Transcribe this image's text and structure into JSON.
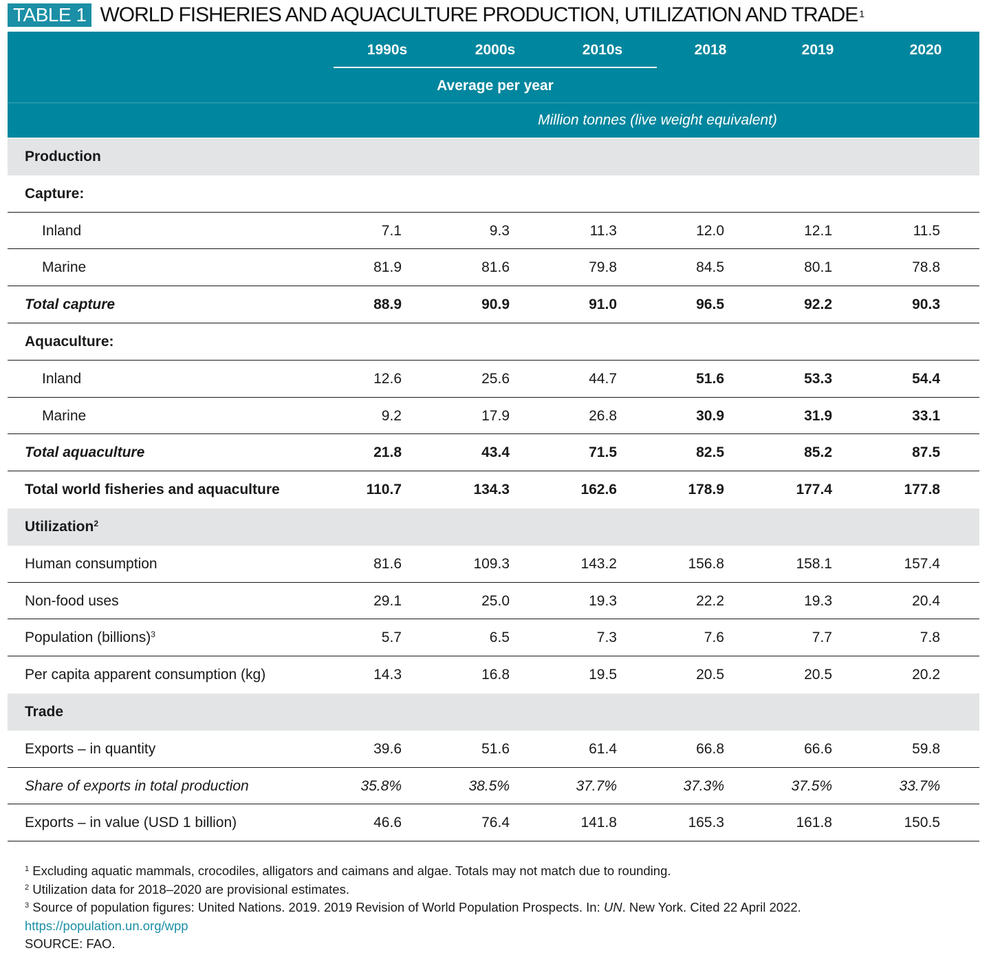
{
  "header": {
    "tag": "TABLE 1",
    "title": "WORLD FISHERIES AND AQUACULTURE PRODUCTION, UTILIZATION AND TRADE",
    "title_sup": "1"
  },
  "columns": [
    "1990s",
    "2000s",
    "2010s",
    "2018",
    "2019",
    "2020"
  ],
  "avg_label": "Average per year",
  "unit_label": "Million tonnes (live weight equivalent)",
  "rows": [
    {
      "label": "Production",
      "type": "section"
    },
    {
      "label": "Capture:",
      "type": "heading"
    },
    {
      "label": "Inland",
      "type": "indent",
      "values": [
        "7.1",
        "9.3",
        "11.3",
        "12.0",
        "12.1",
        "11.5"
      ]
    },
    {
      "label": "Marine",
      "type": "indent",
      "values": [
        "81.9",
        "81.6",
        "79.8",
        "84.5",
        "80.1",
        "78.8"
      ]
    },
    {
      "label": "Total capture",
      "type": "total",
      "values": [
        "88.9",
        "90.9",
        "91.0",
        "96.5",
        "92.2",
        "90.3"
      ]
    },
    {
      "label": "Aquaculture:",
      "type": "heading"
    },
    {
      "label": "Inland",
      "type": "indent",
      "values": [
        "12.6",
        "25.6",
        "44.7",
        "51.6",
        "53.3",
        "54.4"
      ],
      "bold_from": 3
    },
    {
      "label": "Marine",
      "type": "indent",
      "values": [
        "9.2",
        "17.9",
        "26.8",
        "30.9",
        "31.9",
        "33.1"
      ],
      "bold_from": 3
    },
    {
      "label": "Total aquaculture",
      "type": "total",
      "values": [
        "21.8",
        "43.4",
        "71.5",
        "82.5",
        "85.2",
        "87.5"
      ]
    },
    {
      "label": "Total world fisheries and aquaculture",
      "type": "grand",
      "values": [
        "110.7",
        "134.3",
        "162.6",
        "178.9",
        "177.4",
        "177.8"
      ]
    },
    {
      "label": "Utilization",
      "sup": "2",
      "type": "section"
    },
    {
      "label": "Human consumption",
      "type": "plain",
      "values": [
        "81.6",
        "109.3",
        "143.2",
        "156.8",
        "158.1",
        "157.4"
      ]
    },
    {
      "label": "Non-food uses",
      "type": "plain",
      "values": [
        "29.1",
        "25.0",
        "19.3",
        "22.2",
        "19.3",
        "20.4"
      ]
    },
    {
      "label": "Population (billions)",
      "sup": "3",
      "type": "plain",
      "values": [
        "5.7",
        "6.5",
        "7.3",
        "7.6",
        "7.7",
        "7.8"
      ]
    },
    {
      "label": "Per capita apparent consumption (kg)",
      "type": "plain",
      "values": [
        "14.3",
        "16.8",
        "19.5",
        "20.5",
        "20.5",
        "20.2"
      ]
    },
    {
      "label": "Trade",
      "type": "section"
    },
    {
      "label": "Exports – in quantity",
      "type": "plain",
      "values": [
        "39.6",
        "51.6",
        "61.4",
        "66.8",
        "66.6",
        "59.8"
      ]
    },
    {
      "label": "Share of exports in total production",
      "type": "italic",
      "values": [
        "35.8%",
        "38.5%",
        "37.7%",
        "37.3%",
        "37.5%",
        "33.7%"
      ]
    },
    {
      "label": "Exports – in value (USD 1 billion)",
      "type": "plain",
      "values": [
        "46.6",
        "76.4",
        "141.8",
        "165.3",
        "161.8",
        "150.5"
      ]
    }
  ],
  "footnotes": {
    "f1_sup": "1",
    "f1": "Excluding aquatic mammals, crocodiles, alligators and caimans and algae. Totals may not match due to rounding.",
    "f2_sup": "2",
    "f2": "Utilization data for 2018–2020 are provisional estimates.",
    "f3_sup": "3",
    "f3_pre": "Source of population figures: United Nations. 2019. 2019 Revision of World Population Prospects. In: ",
    "f3_italic": "UN",
    "f3_post": ". New York. Cited 22 April 2022.",
    "link": "https://population.un.org/wpp",
    "source": "SOURCE: FAO."
  }
}
